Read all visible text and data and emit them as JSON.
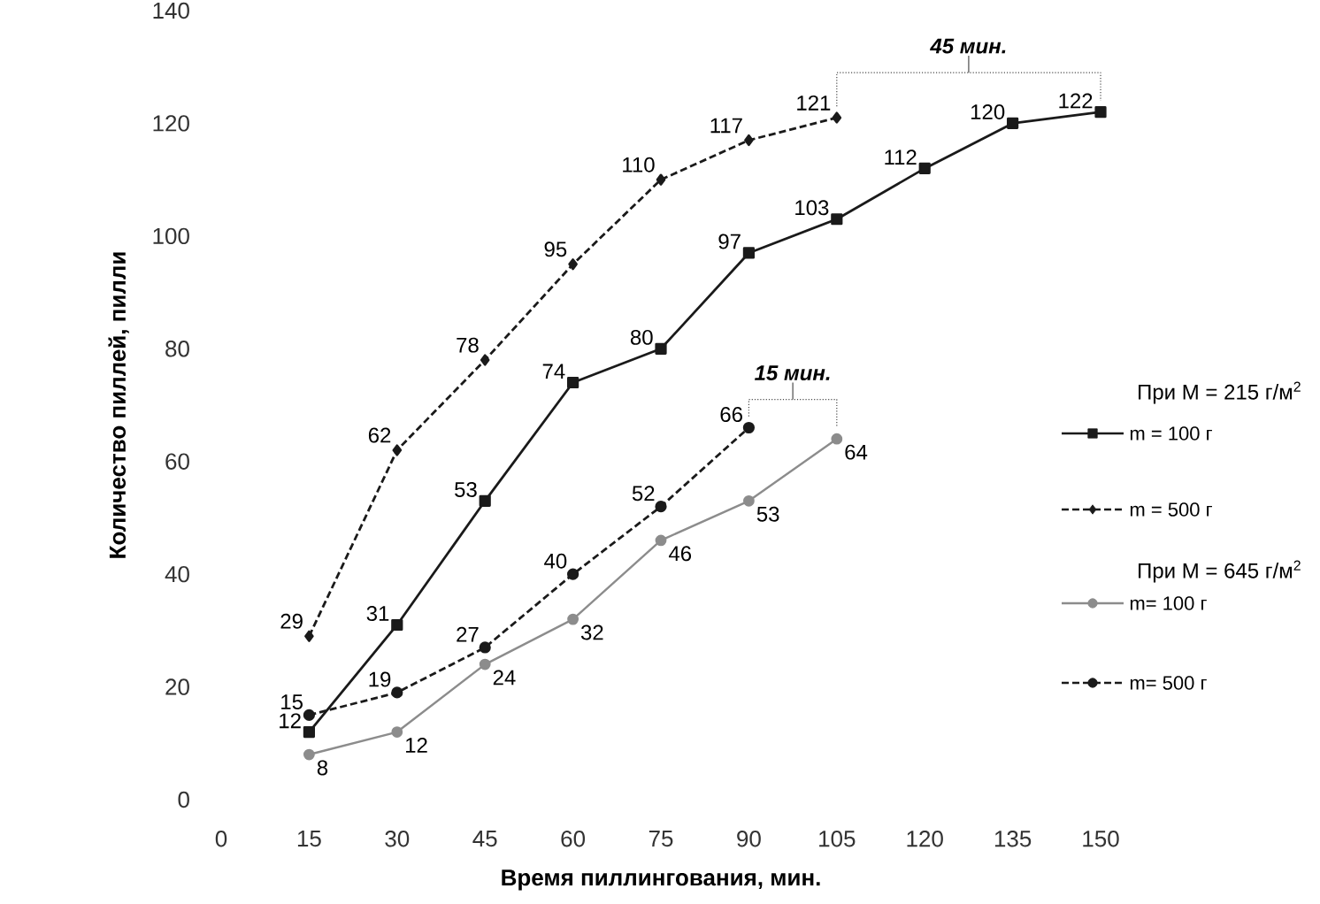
{
  "chart_data": {
    "type": "line",
    "xlabel": "Время пиллингования, мин.",
    "ylabel": "Количество пиллей, пилли",
    "xlim": [
      0,
      150
    ],
    "xticks": [
      0,
      15,
      30,
      45,
      60,
      75,
      90,
      105,
      120,
      135,
      150
    ],
    "ylim": [
      0,
      140
    ],
    "yticks": [
      0,
      20,
      40,
      60,
      80,
      100,
      120,
      140
    ],
    "series": [
      {
        "name": "m = 100 г",
        "color": "#1a1a1a",
        "marker": "square",
        "line_style": "solid",
        "x": [
          15,
          30,
          45,
          60,
          75,
          90,
          105,
          120,
          135,
          150
        ],
        "values": [
          12,
          31,
          53,
          74,
          80,
          97,
          103,
          112,
          120,
          122
        ]
      },
      {
        "name": "m = 500 г",
        "color": "#1a1a1a",
        "marker": "diamond",
        "line_style": "dashed",
        "x": [
          15,
          30,
          45,
          60,
          75,
          90,
          105
        ],
        "values": [
          29,
          62,
          78,
          95,
          110,
          117,
          121
        ]
      },
      {
        "name": "m= 100 г",
        "color": "#8c8c8c",
        "marker": "circle",
        "line_style": "solid",
        "x": [
          15,
          30,
          45,
          60,
          75,
          90,
          105
        ],
        "values": [
          8,
          12,
          24,
          32,
          46,
          53,
          64
        ]
      },
      {
        "name": "m= 500 г",
        "color": "#1a1a1a",
        "marker": "circle",
        "line_style": "dashed",
        "x": [
          15,
          30,
          45,
          60,
          75,
          90
        ],
        "values": [
          15,
          19,
          27,
          40,
          52,
          66
        ]
      }
    ],
    "annotations": [
      "45 мин.",
      "15 мин.",
      "При M = 215 г/м$^{2}$",
      "При M = 645 г/м$^{2}$"
    ],
    "data_labels": true,
    "legend": "right",
    "grid": false
  }
}
